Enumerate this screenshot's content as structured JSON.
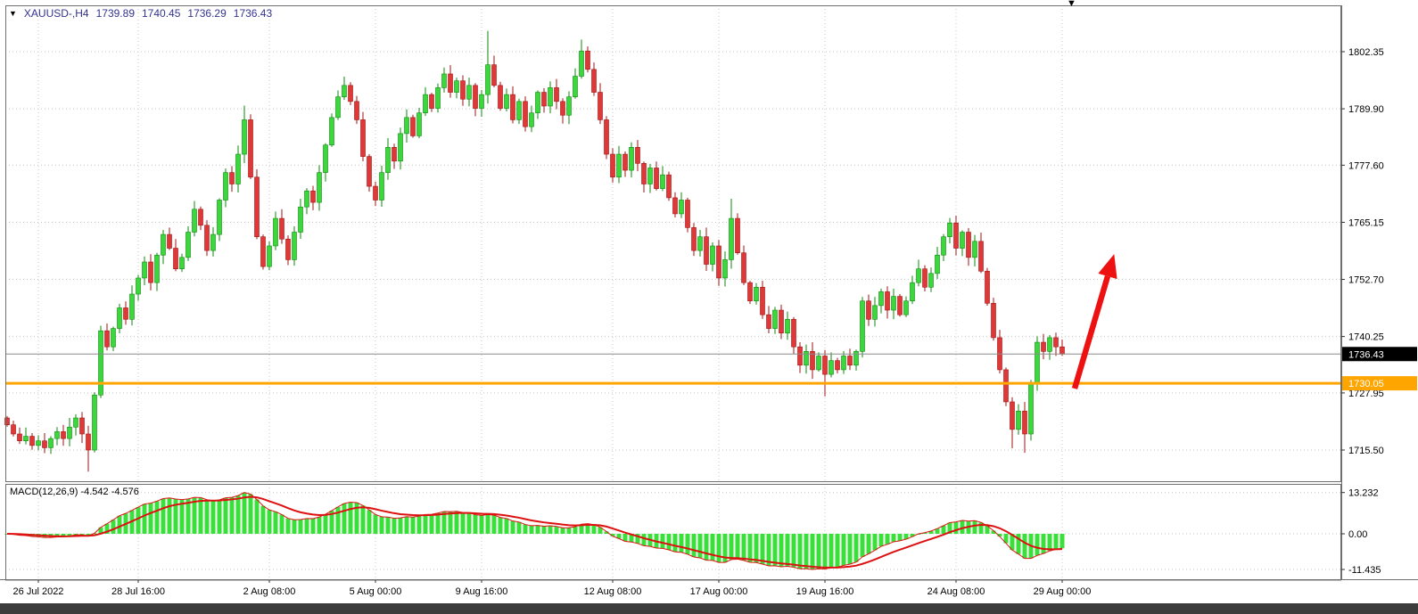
{
  "header": {
    "symbol_period": "XAUUSD-,H4",
    "open": "1739.89",
    "high": "1740.45",
    "low": "1736.29",
    "close": "1736.43"
  },
  "icons": {
    "down_triangle": "▼"
  },
  "macd": {
    "label": "MACD(12,26,9) -4.542 -4.576",
    "main_value": "-4.542",
    "signal_value": "-4.576",
    "axis_ticks": [
      13.232,
      0,
      -11.435
    ],
    "tick_labels": [
      "13.232",
      "0.00",
      "-11.435"
    ]
  },
  "price_axis": {
    "ticks": [
      1802.35,
      1789.9,
      1777.6,
      1765.15,
      1752.7,
      1740.25,
      1727.95,
      1715.5
    ],
    "labels": [
      "1802.35",
      "1789.90",
      "1777.60",
      "1765.15",
      "1752.70",
      "1740.25",
      "1727.95",
      "1715.50"
    ],
    "bid_price": 1736.43,
    "bid_label": "1736.43",
    "hline_price": 1730.05,
    "hline_label": "1730.05",
    "hline_color": "#FFA500"
  },
  "time_axis": {
    "labels": [
      {
        "text": "26 Jul 2022",
        "index": 5
      },
      {
        "text": "28 Jul 16:00",
        "index": 21
      },
      {
        "text": "2 Aug 08:00",
        "index": 42
      },
      {
        "text": "5 Aug 00:00",
        "index": 59
      },
      {
        "text": "9 Aug 16:00",
        "index": 76
      },
      {
        "text": "12 Aug 08:00",
        "index": 97
      },
      {
        "text": "17 Aug 00:00",
        "index": 114
      },
      {
        "text": "19 Aug 16:00",
        "index": 131
      },
      {
        "text": "24 Aug 08:00",
        "index": 152
      },
      {
        "text": "29 Aug 00:00",
        "index": 169
      }
    ]
  },
  "colors": {
    "up": "#3cd73c",
    "up_dark": "#0e8a0e",
    "down": "#df3838",
    "down_dark": "#a31212",
    "grid": "#c9c9c9",
    "frame": "#6f6f6f",
    "macd_hist": "#3ae03a",
    "macd_line": "#dd1111",
    "arrow": "#ee1111",
    "bid_line": "#8a8a8a",
    "header_text": "#33338f",
    "bottom_strip": "#3c3c3c"
  },
  "chart_data": {
    "type": "candlestick+macd",
    "symbol": "XAUUSD-",
    "timeframe": "H4",
    "title": "XAUUSD H4 candlestick chart with MACD(12,26,9)",
    "ylim_price": [
      1709,
      1812
    ],
    "macd_axis": {
      "max": 13.232,
      "zero": 0,
      "min": -11.435
    },
    "first_open": 1722.5,
    "closes": [
      1721,
      1719,
      1717.5,
      1718.5,
      1716.5,
      1717.5,
      1716,
      1718,
      1719.5,
      1718,
      1720.5,
      1722.5,
      1719,
      1715.5,
      1727.5,
      1741.5,
      1738,
      1742,
      1746.5,
      1744,
      1749.5,
      1753,
      1756.5,
      1752,
      1758,
      1762.5,
      1759.5,
      1755,
      1757.5,
      1763,
      1768,
      1764.5,
      1759,
      1762.5,
      1770,
      1776,
      1773.5,
      1780,
      1787.5,
      1775,
      1762,
      1755.5,
      1760,
      1766,
      1761.5,
      1757,
      1763,
      1768.5,
      1772,
      1769.5,
      1776,
      1782,
      1788,
      1792.5,
      1795,
      1791.5,
      1787.5,
      1779.5,
      1773,
      1770,
      1776,
      1781.5,
      1778.5,
      1784.5,
      1788,
      1784,
      1789,
      1793,
      1790,
      1794.5,
      1797.5,
      1793.5,
      1796,
      1792,
      1795,
      1790,
      1793,
      1799.5,
      1795,
      1790,
      1793,
      1787.5,
      1791.5,
      1786,
      1789,
      1793.5,
      1790.5,
      1794.5,
      1791.5,
      1788.5,
      1792.5,
      1797,
      1802.5,
      1798.5,
      1793.5,
      1787.5,
      1780,
      1775,
      1780,
      1776.5,
      1781.5,
      1778,
      1773.5,
      1777,
      1772.5,
      1775.5,
      1770.5,
      1767,
      1770,
      1764,
      1759,
      1762,
      1756,
      1760,
      1753,
      1757,
      1766,
      1758.5,
      1752,
      1748,
      1751,
      1745,
      1742,
      1746,
      1741,
      1744,
      1738,
      1734,
      1737,
      1733,
      1736,
      1732,
      1735,
      1733,
      1736,
      1734,
      1737,
      1748,
      1744,
      1747,
      1750,
      1746,
      1749,
      1745,
      1748,
      1752,
      1755,
      1751,
      1754,
      1758,
      1762,
      1765,
      1759.5,
      1763,
      1757.5,
      1761,
      1754.5,
      1747.5,
      1740,
      1733,
      1726,
      1720,
      1724,
      1719,
      1730,
      1739,
      1737,
      1740,
      1738,
      1736.43
    ],
    "wick_overrides": {
      "13": {
        "low": 1710.8
      },
      "38": {
        "high": 1790.6
      },
      "77": {
        "high": 1806.9
      },
      "92": {
        "high": 1805.0
      },
      "116": {
        "high": 1770.3
      },
      "131": {
        "low": 1727.2
      },
      "161": {
        "low": 1715.9
      },
      "163": {
        "low": 1714.9
      }
    }
  }
}
